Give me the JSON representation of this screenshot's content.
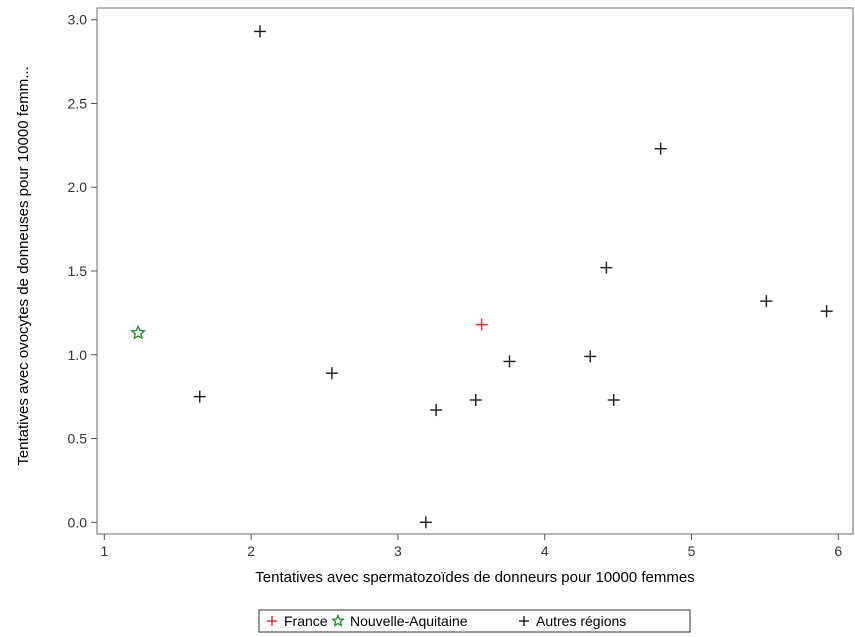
{
  "chart_data": {
    "type": "scatter",
    "title": "",
    "xlabel": "Tentatives avec spermatozoïdes de donneurs pour 10000 femmes",
    "ylabel": "Tentatives avec ovocytes de donneuses pour 10000 femm...",
    "xlim": [
      0.95,
      6.1
    ],
    "ylim": [
      -0.07,
      3.07
    ],
    "xticks": [
      1,
      2,
      3,
      4,
      5,
      6
    ],
    "xtick_labels": [
      "1",
      "2",
      "3",
      "4",
      "5",
      "6"
    ],
    "yticks": [
      0.0,
      0.5,
      1.0,
      1.5,
      2.0,
      2.5,
      3.0
    ],
    "ytick_labels": [
      "0.0",
      "0.5",
      "1.0",
      "1.5",
      "2.0",
      "2.5",
      "3.0"
    ],
    "grid": false,
    "legend_position": "bottom",
    "series": [
      {
        "name": "France",
        "marker": "plus",
        "color": "#e8262b",
        "points": [
          {
            "x": 3.57,
            "y": 1.18
          }
        ]
      },
      {
        "name": "Nouvelle-Aquitaine",
        "marker": "star",
        "color": "#1a8a2a",
        "points": [
          {
            "x": 1.23,
            "y": 1.13
          }
        ]
      },
      {
        "name": "Autres régions",
        "marker": "plus",
        "color": "#1a1a1a",
        "points": [
          {
            "x": 2.06,
            "y": 2.93
          },
          {
            "x": 1.65,
            "y": 0.75
          },
          {
            "x": 2.55,
            "y": 0.89
          },
          {
            "x": 3.19,
            "y": 0.0
          },
          {
            "x": 3.26,
            "y": 0.67
          },
          {
            "x": 3.53,
            "y": 0.73
          },
          {
            "x": 3.76,
            "y": 0.96
          },
          {
            "x": 4.31,
            "y": 0.99
          },
          {
            "x": 4.42,
            "y": 1.52
          },
          {
            "x": 4.47,
            "y": 0.73
          },
          {
            "x": 4.79,
            "y": 2.23
          },
          {
            "x": 5.51,
            "y": 1.32
          },
          {
            "x": 5.92,
            "y": 1.26
          }
        ]
      }
    ]
  }
}
